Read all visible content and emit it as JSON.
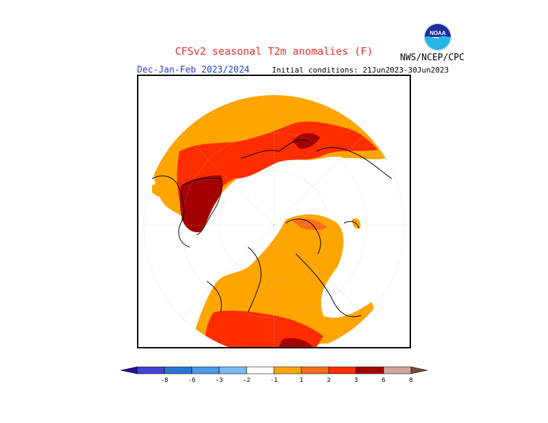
{
  "header": {
    "title": "CFSv2 seasonal T2m anomalies (F)",
    "season": "Dec-Jan-Feb 2023/2024",
    "initial_conditions": "Initial conditions: 21Jun2023-30Jun2023",
    "agency": "NWS/NCEP/CPC",
    "logo_text": "NOAA"
  },
  "map": {
    "projection": "north-polar-stereographic",
    "units": "F"
  },
  "colorbar": {
    "colors": [
      "#2b0a9e",
      "#3f43d6",
      "#2e74d6",
      "#4c9ae8",
      "#7cbaf2",
      "#ffffff",
      "#ffa500",
      "#ff6a1a",
      "#ff2d00",
      "#a50000",
      "#d2a59e",
      "#7a4a3c"
    ],
    "tick_labels": [
      "-8",
      "-6",
      "-3",
      "-2",
      "-1",
      "1",
      "2",
      "3",
      "6",
      "8"
    ]
  }
}
